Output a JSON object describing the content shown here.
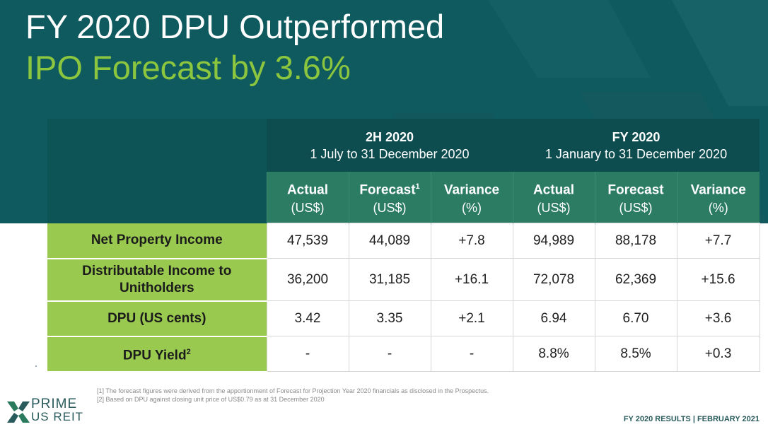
{
  "slide": {
    "title_line1": "FY 2020 DPU Outperformed",
    "title_line2": "IPO Forecast by 3.6%",
    "colors": {
      "banner": "#0f5a5e",
      "accent_green": "#8cc63f",
      "row_label_bg": "#99c94f",
      "column_header_bg": "#2b7c63"
    }
  },
  "table": {
    "periods": [
      {
        "name": "2H 2020",
        "range": "1 July to 31 December 2020"
      },
      {
        "name": "FY 2020",
        "range": "1 January to 31 December 2020"
      }
    ],
    "columns": [
      {
        "label": "Actual",
        "sup": "",
        "unit": "(US$)"
      },
      {
        "label": "Forecast",
        "sup": "1",
        "unit": "(US$)"
      },
      {
        "label": "Variance",
        "sup": "",
        "unit": "(%)"
      },
      {
        "label": "Actual",
        "sup": "",
        "unit": "(US$)"
      },
      {
        "label": "Forecast",
        "sup": "",
        "unit": "(US$)"
      },
      {
        "label": "Variance",
        "sup": "",
        "unit": "(%)"
      }
    ],
    "rows": [
      {
        "label_line1": "Net Property Income",
        "label_line2": "",
        "sup": "",
        "values": [
          "47,539",
          "44,089",
          "+7.8",
          "94,989",
          "88,178",
          "+7.7"
        ]
      },
      {
        "label_line1": "Distributable Income to",
        "label_line2": "Unitholders",
        "sup": "",
        "values": [
          "36,200",
          "31,185",
          "+16.1",
          "72,078",
          "62,369",
          "+15.6"
        ]
      },
      {
        "label_line1": "DPU (US cents)",
        "label_line2": "",
        "sup": "",
        "values": [
          "3.42",
          "3.35",
          "+2.1",
          "6.94",
          "6.70",
          "+3.6"
        ]
      },
      {
        "label_line1": "DPU Yield",
        "label_line2": "",
        "sup": "2",
        "values": [
          "-",
          "-",
          "-",
          "8.8%",
          "8.5%",
          "+0.3"
        ]
      }
    ]
  },
  "footnotes": [
    "[1] The forecast figures were derived from the apportionment of Forecast for Projection Year 2020 financials as disclosed in the Prospectus.",
    "[2] Based on DPU against closing unit price of US$0.79 as at 31 December 2020"
  ],
  "logo": {
    "line1": "PRIME",
    "line2": "US REIT"
  },
  "footer": {
    "text": "FY 2020 RESULTS | FEBRUARY 2021"
  }
}
